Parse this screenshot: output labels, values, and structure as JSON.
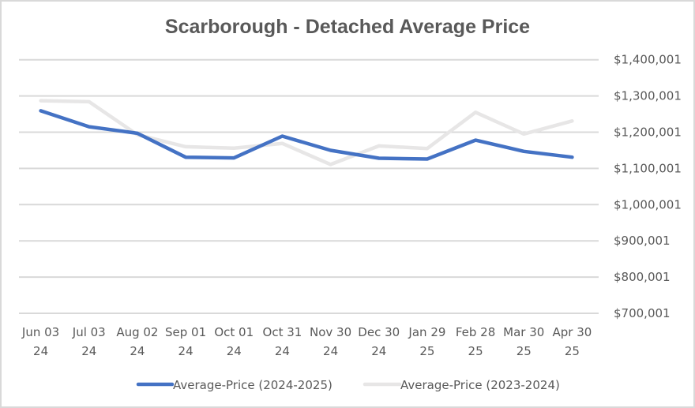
{
  "chart_data": {
    "type": "line",
    "title": "Scarborough - Detached Average Price",
    "xlabel": "",
    "ylabel": "",
    "categories": [
      [
        "Jun 03",
        "24"
      ],
      [
        "Jul 03",
        "24"
      ],
      [
        "Aug 02",
        "24"
      ],
      [
        "Sep 01",
        "24"
      ],
      [
        "Oct 01",
        "24"
      ],
      [
        "Oct 31",
        "24"
      ],
      [
        "Nov 30",
        "24"
      ],
      [
        "Dec 30",
        "24"
      ],
      [
        "Jan 29",
        "25"
      ],
      [
        "Feb 28",
        "25"
      ],
      [
        "Mar 30",
        "25"
      ],
      [
        "Apr 30",
        "25"
      ]
    ],
    "y_ticks": [
      {
        "value": 1400001,
        "label": "$1,400,001"
      },
      {
        "value": 1300001,
        "label": "$1,300,001"
      },
      {
        "value": 1200001,
        "label": "$1,200,001"
      },
      {
        "value": 1100001,
        "label": "$1,100,001"
      },
      {
        "value": 1000001,
        "label": "$1,000,001"
      },
      {
        "value": 900001,
        "label": "$900,001"
      },
      {
        "value": 800001,
        "label": "$800,001"
      },
      {
        "value": 700001,
        "label": "$700,001"
      }
    ],
    "ylim": [
      700001,
      1400001
    ],
    "y_axis_position": "right",
    "grid": true,
    "legend_position": "bottom",
    "series": [
      {
        "name": "Average-Price (2024-2025)",
        "color": "#4472C4",
        "values": [
          1259000,
          1215000,
          1197000,
          1131000,
          1129000,
          1189000,
          1150000,
          1128000,
          1126000,
          1178000,
          1147000,
          1131000
        ]
      },
      {
        "name": "Average-Price (2023-2024)",
        "color": "#E7E6E6",
        "values": [
          1287000,
          1284000,
          1193000,
          1160000,
          1156000,
          1169000,
          1111000,
          1162000,
          1155000,
          1255000,
          1195000,
          1231000
        ]
      }
    ]
  }
}
